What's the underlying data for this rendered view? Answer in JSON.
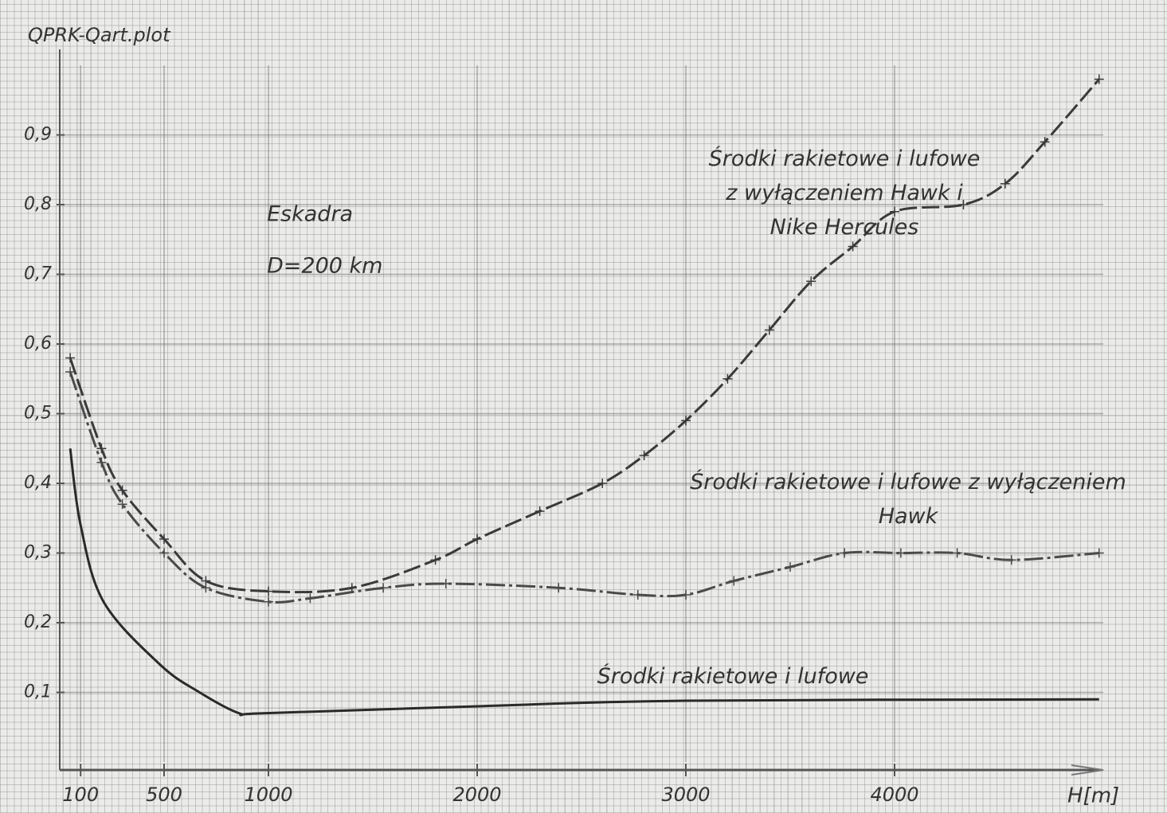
{
  "chart_data": {
    "type": "line",
    "title": "QPRK-Qart.plot",
    "x_label": "H[m]",
    "annotations": [
      "Eskadra",
      "D=200 km"
    ],
    "xlim": [
      0,
      5000
    ],
    "ylim": [
      0,
      1.0
    ],
    "xticks": [
      100,
      500,
      1000,
      2000,
      3000,
      4000
    ],
    "yticks": [
      {
        "value": 0.1,
        "label": "0,1"
      },
      {
        "value": 0.2,
        "label": "0,2"
      },
      {
        "value": 0.3,
        "label": "0,3"
      },
      {
        "value": 0.4,
        "label": "0,4"
      },
      {
        "value": 0.5,
        "label": "0,5"
      },
      {
        "value": 0.6,
        "label": "0,6"
      },
      {
        "value": 0.7,
        "label": "0,7"
      },
      {
        "value": 0.8,
        "label": "0,8"
      },
      {
        "value": 0.9,
        "label": "0,9"
      }
    ],
    "grid": true,
    "series": [
      {
        "name": "Środki rakietowe i lufowe z wyłączeniem Hawk i Nike Hercules",
        "color": "#3a3a3a",
        "dash": "dashed",
        "marker": "+",
        "x": [
          50,
          200,
          300,
          500,
          700,
          1000,
          1400,
          1800,
          2000,
          2300,
          2600,
          2800,
          3000,
          3200,
          3400,
          3600,
          3800,
          4000,
          4330,
          4530,
          4720,
          4980
        ],
        "values": [
          0.58,
          0.45,
          0.39,
          0.32,
          0.26,
          0.245,
          0.25,
          0.29,
          0.32,
          0.36,
          0.4,
          0.44,
          0.49,
          0.55,
          0.62,
          0.69,
          0.74,
          0.79,
          0.8,
          0.83,
          0.89,
          0.98
        ]
      },
      {
        "name": "Środki rakietowe i lufowe z wyłączeniem Hawk",
        "color": "#4a4a4a",
        "dash": "dashdot",
        "marker": "+",
        "x": [
          50,
          200,
          300,
          500,
          700,
          1000,
          1200,
          1550,
          1850,
          2390,
          2770,
          3000,
          3230,
          3500,
          3760,
          4030,
          4300,
          4560,
          4980
        ],
        "values": [
          0.56,
          0.43,
          0.37,
          0.3,
          0.25,
          0.23,
          0.235,
          0.25,
          0.256,
          0.25,
          0.24,
          0.24,
          0.26,
          0.28,
          0.3,
          0.3,
          0.3,
          0.29,
          0.3
        ]
      },
      {
        "name": "Środki rakietowe i lufowe",
        "color": "#2a2a2a",
        "dash": "solid",
        "marker": "none",
        "x": [
          50,
          100,
          210,
          480,
          670,
          860,
          975,
          2000,
          3000,
          4980
        ],
        "values": [
          0.45,
          0.34,
          0.23,
          0.14,
          0.1,
          0.07,
          0.07,
          0.08,
          0.088,
          0.09
        ]
      }
    ]
  }
}
